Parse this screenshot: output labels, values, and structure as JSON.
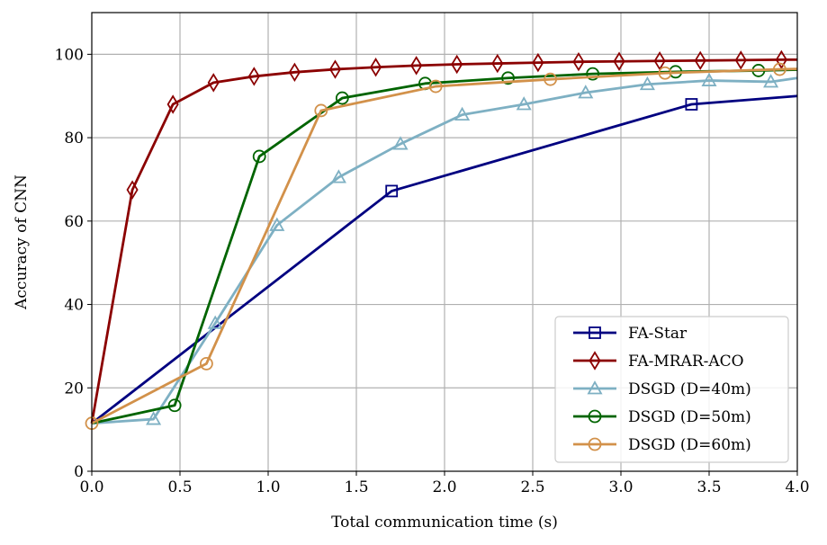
{
  "chart_data": {
    "type": "line",
    "title": "",
    "xlabel": "Total communication time (s)",
    "ylabel": "Accuracy of CNN",
    "xlim": [
      0,
      4
    ],
    "ylim": [
      0,
      110
    ],
    "grid": true,
    "legend_position": "lower-right",
    "x_ticks": [
      {
        "value": 0,
        "label": "0.0"
      },
      {
        "value": 0.5,
        "label": "0.5"
      },
      {
        "value": 1,
        "label": "1.0"
      },
      {
        "value": 1.5,
        "label": "1.5"
      },
      {
        "value": 2,
        "label": "2.0"
      },
      {
        "value": 2.5,
        "label": "2.5"
      },
      {
        "value": 3,
        "label": "3.0"
      },
      {
        "value": 3.5,
        "label": "3.5"
      },
      {
        "value": 4,
        "label": "4.0"
      }
    ],
    "y_ticks": [
      {
        "value": 0,
        "label": "0"
      },
      {
        "value": 20,
        "label": "20"
      },
      {
        "value": 40,
        "label": "40"
      },
      {
        "value": 60,
        "label": "60"
      },
      {
        "value": 80,
        "label": "80"
      },
      {
        "value": 100,
        "label": "100"
      }
    ],
    "series": [
      {
        "name": "FA-Star",
        "color": "#000080",
        "marker": "square",
        "x": [
          0,
          1.7,
          3.4,
          4.0
        ],
        "y": [
          11.5,
          67.2,
          88.0,
          90.0
        ],
        "marker_indices": [
          1,
          2
        ]
      },
      {
        "name": "FA-MRAR-ACO",
        "color": "#8b0000",
        "marker": "diamond",
        "x": [
          0,
          0.23,
          0.46,
          0.69,
          0.92,
          1.15,
          1.38,
          1.61,
          1.84,
          2.07,
          2.3,
          2.53,
          2.76,
          2.99,
          3.22,
          3.45,
          3.68,
          3.91,
          4.0
        ],
        "y": [
          11.5,
          67.5,
          88.0,
          93.2,
          94.7,
          95.7,
          96.4,
          96.9,
          97.3,
          97.6,
          97.8,
          98.0,
          98.2,
          98.3,
          98.4,
          98.5,
          98.6,
          98.7,
          98.7
        ],
        "marker_indices": [
          1,
          2,
          3,
          4,
          5,
          6,
          7,
          8,
          9,
          10,
          11,
          12,
          13,
          14,
          15,
          16,
          17
        ]
      },
      {
        "name": "DSGD (D=40m)",
        "color": "#7eb0c3",
        "marker": "triangle",
        "x": [
          0,
          0.35,
          0.7,
          1.05,
          1.4,
          1.75,
          2.1,
          2.45,
          2.8,
          3.15,
          3.5,
          3.85,
          4.0
        ],
        "y": [
          11.5,
          12.5,
          35.5,
          59.0,
          70.5,
          78.5,
          85.5,
          88.0,
          90.8,
          92.8,
          93.7,
          93.4,
          94.3
        ],
        "marker_indices": [
          1,
          2,
          3,
          4,
          5,
          6,
          7,
          8,
          9,
          10,
          11
        ]
      },
      {
        "name": "DSGD (D=50m)",
        "color": "#006400",
        "marker": "circle",
        "x": [
          0,
          0.47,
          0.95,
          1.42,
          1.89,
          2.36,
          2.84,
          3.31,
          3.78,
          4.0
        ],
        "y": [
          11.5,
          15.8,
          75.5,
          89.5,
          93.0,
          94.3,
          95.3,
          95.8,
          96.1,
          96.3
        ],
        "marker_indices": [
          1,
          2,
          3,
          4,
          5,
          6,
          7,
          8
        ]
      },
      {
        "name": "DSGD (D=60m)",
        "color": "#d2914a",
        "marker": "circle",
        "x": [
          0,
          0.65,
          1.3,
          1.95,
          2.6,
          3.25,
          3.9,
          4.0
        ],
        "y": [
          11.5,
          25.8,
          86.5,
          92.3,
          94.0,
          95.5,
          96.4,
          96.5
        ],
        "marker_indices": [
          0,
          1,
          2,
          3,
          4,
          5,
          6
        ]
      }
    ]
  }
}
